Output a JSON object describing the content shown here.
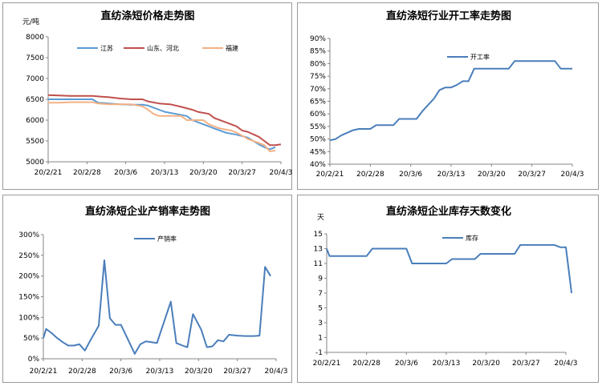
{
  "chart_data": [
    {
      "type": "line",
      "title": "直纺涤短价格走势图",
      "unit_label": "元/吨",
      "xlabel": "",
      "ylabel": "",
      "ylim": [
        5000,
        8000
      ],
      "yticks": [
        "5000",
        "5500",
        "6000",
        "6500",
        "7000",
        "7500",
        "8000"
      ],
      "xticks": [
        "20/2/21",
        "20/2/28",
        "20/3/6",
        "20/3/13",
        "20/3/20",
        "20/3/27",
        "20/4/3"
      ],
      "xlim": [
        0,
        42
      ],
      "legend": "top",
      "colors": [
        "#5b9bd5",
        "#c0504d",
        "#f4b183"
      ],
      "series": [
        {
          "name": "江苏",
          "points": [
            [
              0,
              6500
            ],
            [
              2,
              6500
            ],
            [
              4,
              6500
            ],
            [
              6,
              6500
            ],
            [
              8,
              6500
            ],
            [
              9,
              6420
            ],
            [
              11,
              6400
            ],
            [
              13,
              6380
            ],
            [
              15,
              6370
            ],
            [
              17,
              6370
            ],
            [
              18,
              6350
            ],
            [
              20,
              6250
            ],
            [
              21,
              6200
            ],
            [
              23,
              6150
            ],
            [
              25,
              6100
            ],
            [
              26,
              6000
            ],
            [
              28,
              5900
            ],
            [
              30,
              5800
            ],
            [
              32,
              5700
            ],
            [
              34,
              5650
            ],
            [
              36,
              5580
            ],
            [
              37,
              5500
            ],
            [
              38,
              5420
            ],
            [
              39,
              5350
            ],
            [
              40,
              5300
            ],
            [
              41,
              5350
            ]
          ]
        },
        {
          "name": "山东、河北",
          "points": [
            [
              0,
              6600
            ],
            [
              2,
              6590
            ],
            [
              4,
              6580
            ],
            [
              6,
              6580
            ],
            [
              8,
              6580
            ],
            [
              9,
              6570
            ],
            [
              11,
              6550
            ],
            [
              13,
              6520
            ],
            [
              15,
              6500
            ],
            [
              17,
              6500
            ],
            [
              18,
              6450
            ],
            [
              20,
              6400
            ],
            [
              22,
              6380
            ],
            [
              24,
              6320
            ],
            [
              26,
              6250
            ],
            [
              27,
              6200
            ],
            [
              29,
              6150
            ],
            [
              30,
              6050
            ],
            [
              32,
              5950
            ],
            [
              34,
              5850
            ],
            [
              35,
              5750
            ],
            [
              36,
              5720
            ],
            [
              38,
              5600
            ],
            [
              39,
              5500
            ],
            [
              40,
              5400
            ],
            [
              41,
              5400
            ],
            [
              42,
              5420
            ]
          ]
        },
        {
          "name": "福建",
          "points": [
            [
              0,
              6420
            ],
            [
              2,
              6420
            ],
            [
              4,
              6430
            ],
            [
              6,
              6430
            ],
            [
              8,
              6430
            ],
            [
              9,
              6400
            ],
            [
              11,
              6380
            ],
            [
              13,
              6380
            ],
            [
              15,
              6380
            ],
            [
              17,
              6330
            ],
            [
              18,
              6250
            ],
            [
              19,
              6150
            ],
            [
              20,
              6100
            ],
            [
              22,
              6100
            ],
            [
              24,
              6100
            ],
            [
              25,
              6000
            ],
            [
              27,
              6000
            ],
            [
              28,
              6000
            ],
            [
              29,
              5900
            ],
            [
              31,
              5800
            ],
            [
              33,
              5750
            ],
            [
              34,
              5700
            ],
            [
              36,
              5550
            ],
            [
              38,
              5450
            ],
            [
              39,
              5400
            ],
            [
              40,
              5250
            ],
            [
              41,
              5270
            ]
          ]
        }
      ]
    },
    {
      "type": "line",
      "title": "直纺涤短行业开工率走势图",
      "xlabel": "",
      "ylabel": "",
      "ylim": [
        40,
        90
      ],
      "yticks": [
        "40%",
        "45%",
        "50%",
        "55%",
        "60%",
        "65%",
        "70%",
        "75%",
        "80%",
        "85%",
        "90%"
      ],
      "xticks": [
        "20/2/21",
        "20/2/28",
        "20/3/6",
        "20/3/13",
        "20/3/20",
        "20/3/27",
        "20/4/3"
      ],
      "xlim": [
        0,
        42
      ],
      "legend": "top",
      "colors": [
        "#4a7ebb"
      ],
      "series": [
        {
          "name": "开工率",
          "points": [
            [
              0,
              49.5
            ],
            [
              1,
              50
            ],
            [
              2,
              51.5
            ],
            [
              4,
              53.5
            ],
            [
              5,
              54
            ],
            [
              6,
              54
            ],
            [
              7,
              54
            ],
            [
              8,
              55.5
            ],
            [
              10,
              55.5
            ],
            [
              11,
              55.5
            ],
            [
              12,
              58
            ],
            [
              14,
              58
            ],
            [
              15,
              58
            ],
            [
              16,
              61
            ],
            [
              18,
              66
            ],
            [
              19,
              69.5
            ],
            [
              20,
              70.5
            ],
            [
              21,
              70.5
            ],
            [
              22,
              71.5
            ],
            [
              23,
              73
            ],
            [
              24,
              73
            ],
            [
              25,
              78
            ],
            [
              27,
              78
            ],
            [
              29,
              78
            ],
            [
              31,
              78
            ],
            [
              32,
              81
            ],
            [
              33,
              81
            ],
            [
              35,
              81
            ],
            [
              37,
              81
            ],
            [
              39,
              81
            ],
            [
              40,
              78
            ],
            [
              42,
              78
            ]
          ]
        }
      ]
    },
    {
      "type": "line",
      "title": "直纺涤短企业产销率走势图",
      "xlabel": "",
      "ylabel": "",
      "ylim": [
        0,
        300
      ],
      "yticks": [
        "0%",
        "50%",
        "100%",
        "150%",
        "200%",
        "250%",
        "300%"
      ],
      "xticks": [
        "20/2/21",
        "20/2/28",
        "20/3/6",
        "20/3/13",
        "20/3/20",
        "20/3/27",
        "20/4/3"
      ],
      "xlim": [
        0,
        42
      ],
      "legend": "top",
      "colors": [
        "#4a7ebb"
      ],
      "series": [
        {
          "name": "产销率",
          "points": [
            [
              0,
              50
            ],
            [
              0.5,
              72
            ],
            [
              1.5,
              62
            ],
            [
              2.5,
              50
            ],
            [
              3.5,
              40
            ],
            [
              4.5,
              32
            ],
            [
              5.5,
              32
            ],
            [
              6.5,
              35
            ],
            [
              7.5,
              20
            ],
            [
              8.5,
              45
            ],
            [
              10,
              80
            ],
            [
              11,
              238
            ],
            [
              12,
              98
            ],
            [
              13,
              82
            ],
            [
              14,
              82
            ],
            [
              16.5,
              12
            ],
            [
              17.5,
              35
            ],
            [
              18.5,
              42
            ],
            [
              19.5,
              40
            ],
            [
              20.5,
              38
            ],
            [
              23,
              138
            ],
            [
              24,
              38
            ],
            [
              25.5,
              30
            ],
            [
              26,
              28
            ],
            [
              27,
              108
            ],
            [
              28.5,
              70
            ],
            [
              29.5,
              28
            ],
            [
              30.5,
              30
            ],
            [
              31.5,
              45
            ],
            [
              32.5,
              42
            ],
            [
              33.5,
              58
            ],
            [
              35,
              56
            ],
            [
              36.5,
              55
            ],
            [
              38,
              55
            ],
            [
              39,
              56
            ],
            [
              40,
              222
            ],
            [
              41,
              200
            ]
          ]
        }
      ]
    },
    {
      "type": "line",
      "title": "直纺涤短企业库存天数变化",
      "unit_label": "天",
      "xlabel": "",
      "ylabel": "",
      "ylim": [
        -1,
        15
      ],
      "yticks": [
        "-1",
        "1",
        "3",
        "5",
        "7",
        "9",
        "11",
        "13",
        "15"
      ],
      "xticks": [
        "20/2/21",
        "20/2/28",
        "20/3/6",
        "20/3/13",
        "20/3/20",
        "20/3/27",
        "20/4/3"
      ],
      "xlim": [
        0,
        42
      ],
      "legend": "top",
      "colors": [
        "#4a7ebb"
      ],
      "series": [
        {
          "name": "库存",
          "points": [
            [
              0,
              13
            ],
            [
              0.5,
              12
            ],
            [
              2,
              12
            ],
            [
              4,
              12
            ],
            [
              6,
              12
            ],
            [
              7,
              12
            ],
            [
              8,
              13
            ],
            [
              10,
              13
            ],
            [
              12,
              13
            ],
            [
              14,
              13
            ],
            [
              15,
              11
            ],
            [
              17,
              11
            ],
            [
              19,
              11
            ],
            [
              21,
              11
            ],
            [
              22,
              11.6
            ],
            [
              24,
              11.6
            ],
            [
              26,
              11.6
            ],
            [
              27,
              12.3
            ],
            [
              29,
              12.3
            ],
            [
              31,
              12.3
            ],
            [
              33,
              12.3
            ],
            [
              34,
              13.5
            ],
            [
              36,
              13.5
            ],
            [
              38,
              13.5
            ],
            [
              40,
              13.5
            ],
            [
              41,
              13.2
            ],
            [
              42,
              13.2
            ],
            [
              43,
              7
            ]
          ]
        }
      ]
    }
  ]
}
